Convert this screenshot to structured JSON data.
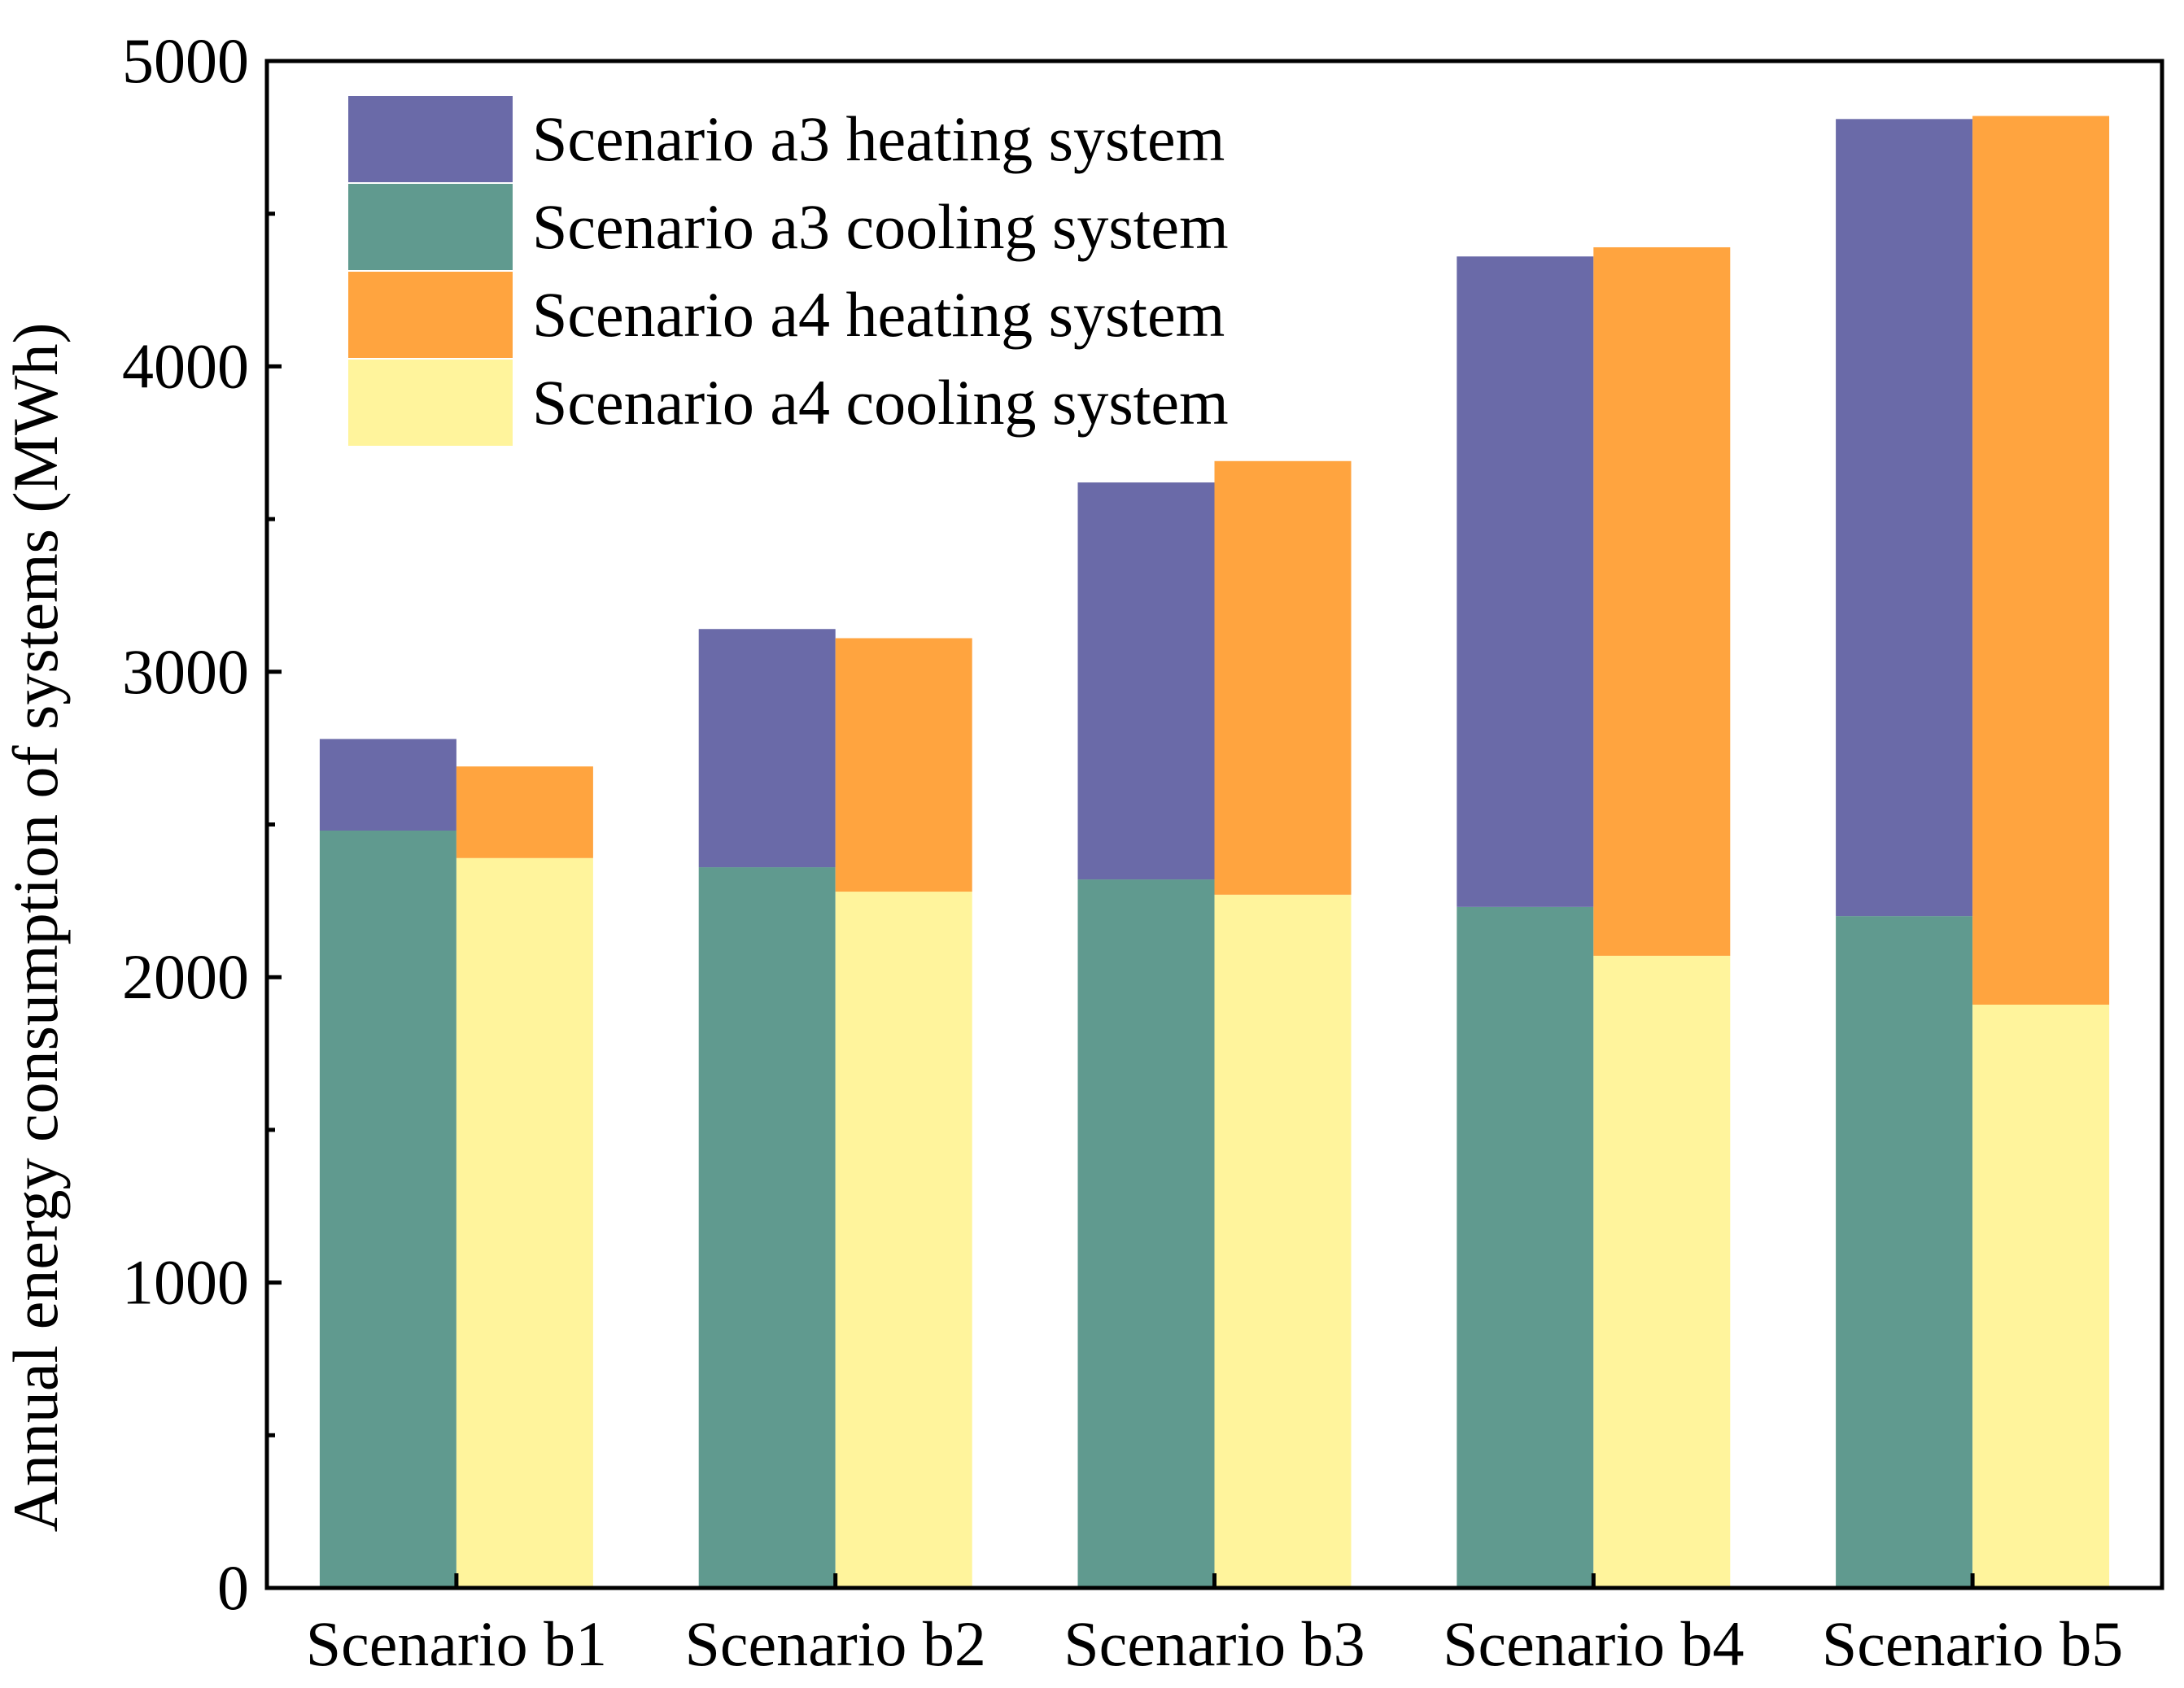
{
  "chart_data": {
    "type": "bar",
    "stacked": true,
    "title": "",
    "xlabel": "",
    "ylabel": "Annual energy consumption of systems (MWh)",
    "ylim": [
      0,
      5000
    ],
    "yticks": [
      "0",
      "1000",
      "2000",
      "3000",
      "4000",
      "5000"
    ],
    "ytick_values": [
      0,
      1000,
      2000,
      3000,
      4000,
      5000
    ],
    "categories": [
      "Scenario b1",
      "Scenario b2",
      "Scenario b3",
      "Scenario b4",
      "Scenario b5"
    ],
    "groups": [
      {
        "name": "Scenario a3",
        "stack": [
          {
            "name": "Scenario a3 cooling system",
            "color": "#609a8f",
            "values": [
              2480,
              2360,
              2320,
              2230,
              2200
            ]
          },
          {
            "name": "Scenario a3 heating system",
            "color": "#6a6aa8",
            "values": [
              300,
              780,
              1300,
              2130,
              2610
            ]
          }
        ]
      },
      {
        "name": "Scenario a4",
        "stack": [
          {
            "name": "Scenario a4 cooling system",
            "color": "#fff49c",
            "values": [
              2390,
              2280,
              2270,
              2070,
              1910
            ]
          },
          {
            "name": "Scenario a4 heating system",
            "color": "#ffa43f",
            "values": [
              300,
              830,
              1420,
              2320,
              2910
            ]
          }
        ]
      }
    ],
    "legend": {
      "placement": "top-left",
      "entries": [
        {
          "label": "Scenario a3 heating system",
          "color": "#6a6aa8"
        },
        {
          "label": "Scenario a3 cooling system",
          "color": "#609a8f"
        },
        {
          "label": "Scenario a4 heating system",
          "color": "#ffa43f"
        },
        {
          "label": "Scenario a4 cooling system",
          "color": "#fff49c"
        }
      ]
    },
    "grid": false
  }
}
